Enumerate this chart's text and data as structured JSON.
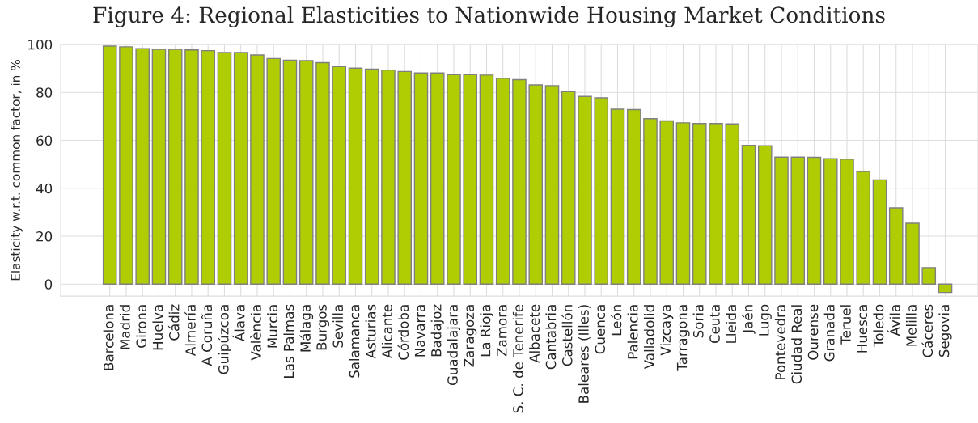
{
  "chart_data": {
    "type": "bar",
    "title": "Figure 4: Regional Elasticities to Nationwide Housing Market Conditions",
    "ylabel": "Elasticity w.r.t. common factor, in %",
    "categories": [
      "Barcelona",
      "Madrid",
      "Girona",
      "Huelva",
      "Cádiz",
      "Almería",
      "A Coruña",
      "Guipúzcoa",
      "Álava",
      "València",
      "Murcia",
      "Las Palmas",
      "Málaga",
      "Burgos",
      "Sevilla",
      "Salamanca",
      "Asturias",
      "Alicante",
      "Córdoba",
      "Navarra",
      "Badajoz",
      "Guadalajara",
      "Zaragoza",
      "La Rioja",
      "Zamora",
      "S. C. de Tenerife",
      "Albacete",
      "Cantabria",
      "Castellón",
      "Baleares (Illes)",
      "Cuenca",
      "León",
      "Palencia",
      "Valladolid",
      "Vizcaya",
      "Tarragona",
      "Soria",
      "Ceuta",
      "Lleida",
      "Jaén",
      "Lugo",
      "Pontevedra",
      "Ciudad Real",
      "Ourense",
      "Granada",
      "Teruel",
      "Huesca",
      "Toledo",
      "Ávila",
      "Melilla",
      "Cáceres",
      "Segovia"
    ],
    "values": [
      99.3,
      99,
      98.2,
      97.9,
      97.9,
      97.7,
      97.4,
      96.6,
      96.6,
      95.6,
      94.1,
      93.4,
      93.2,
      92.4,
      90.8,
      90.1,
      89.7,
      89.3,
      88.7,
      88.1,
      88.1,
      87.4,
      87.4,
      87.2,
      85.9,
      85.3,
      83.1,
      82.8,
      80.3,
      78.3,
      77.7,
      73,
      72.8,
      69,
      68.1,
      67.3,
      67,
      67,
      66.8,
      57.9,
      57.7,
      53,
      53,
      52.9,
      52.3,
      52.1,
      47,
      43.5,
      31.8,
      25.4,
      6.9,
      -3.5
    ],
    "color": "#afcd02",
    "ylim": [
      -5,
      100
    ],
    "yticks": [
      0,
      20,
      40,
      60,
      80,
      100
    ],
    "grid": true
  }
}
